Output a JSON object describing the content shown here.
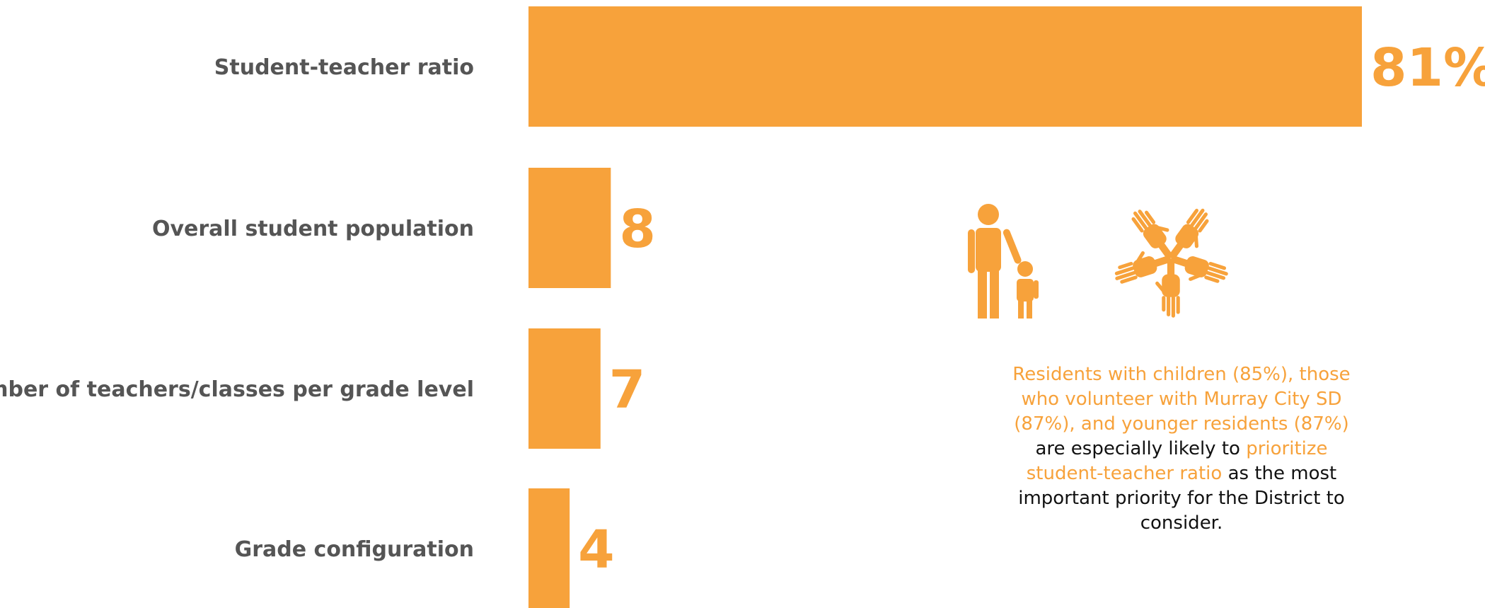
{
  "chart_data": {
    "type": "bar",
    "orientation": "horizontal",
    "categories": [
      "Student-teacher ratio",
      "Overall student population",
      "Number of teachers/classes per grade level",
      "Grade configuration"
    ],
    "values": [
      81,
      8,
      7,
      4
    ],
    "value_labels": [
      "81%",
      "8",
      "7",
      "4"
    ],
    "xlim": [
      0,
      100
    ],
    "bar_color": "#F7A23B",
    "grid": false
  },
  "callout": {
    "part1": "Residents with children (85%), those who volunteer with Murray City SD (87%), and younger residents (87%)",
    "part2": " are especially likely to ",
    "part3": "prioritize student-teacher ratio",
    "part4": " as the most important priority for the District to consider."
  },
  "icons": [
    "parent-child-icon",
    "hands-circle-icon",
    "person-icon"
  ],
  "colors": {
    "accent": "#F7A23B",
    "label": "#555555",
    "text": "#111111"
  }
}
